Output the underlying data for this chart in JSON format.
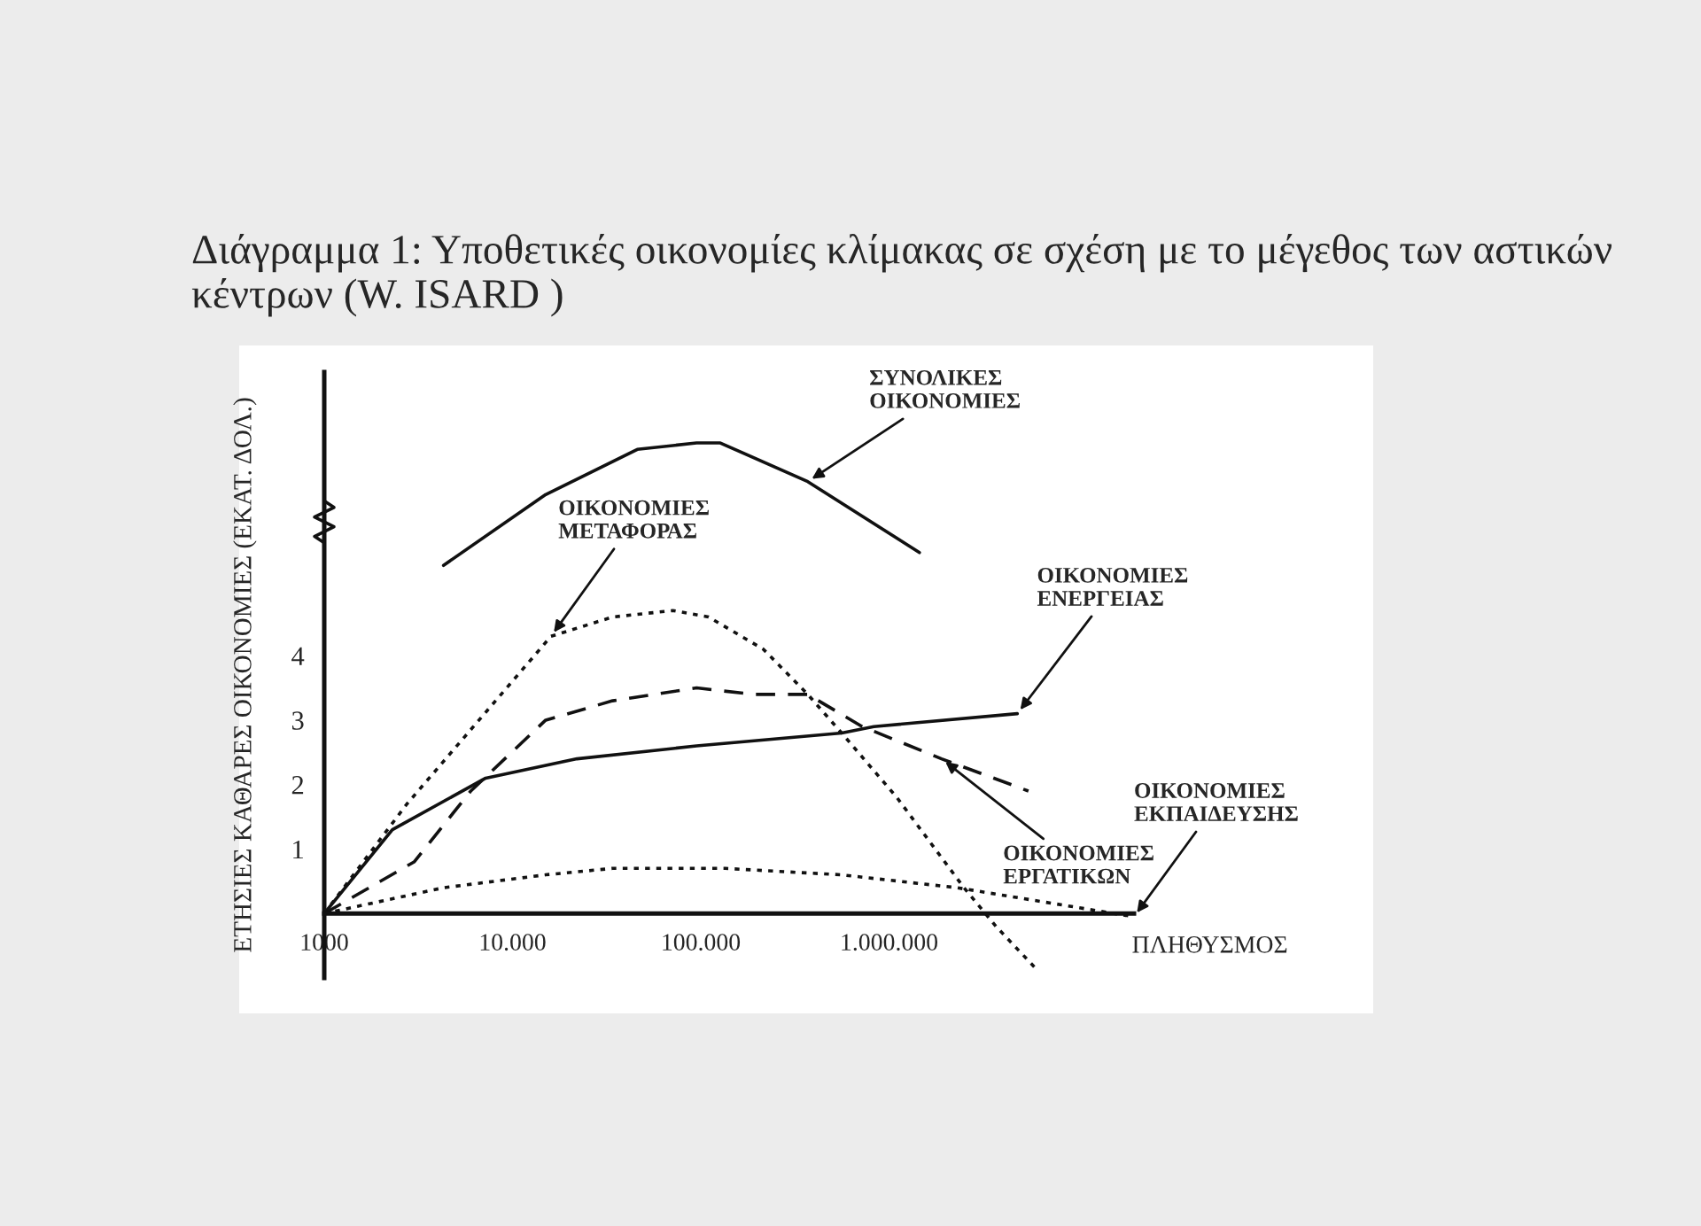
{
  "chart_data": {
    "type": "line",
    "title": "Διάγραμμα 1: Υποθετικές οικονομίες κλίμακας σε σχέση με το μέγεθος των αστικών κέντρων (W. ISARD )",
    "xlabel": "ΠΛΗΘΥΣΜΟΣ",
    "ylabel": "ΕΤΗΣΙΕΣ ΚΑΘΑΡΕΣ ΟΙΚΟΝΟΜΙΕΣ (ΕΚΑΤ. ΔΟΛ.)",
    "log": "x",
    "xlim": [
      1000,
      20000000
    ],
    "ylim": [
      -1,
      8.4
    ],
    "xticks": [
      {
        "value": 1000,
        "label": "1000"
      },
      {
        "value": 10000,
        "label": "10.000"
      },
      {
        "value": 100000,
        "label": "100.000"
      },
      {
        "value": 1000000,
        "label": "1.000.000"
      }
    ],
    "yticks": [
      1,
      2,
      3,
      4
    ],
    "grid": false,
    "legend": false,
    "marker": "none",
    "series": [
      {
        "name": "ΣΥΝΟΛΙΚΕΣ ΟΙΚΟΝΟΜΙΕΣ",
        "color": "#111111",
        "line_style": "solid",
        "x": [
          4300,
          15000,
          46000,
          95000,
          127000,
          370000,
          1450000
        ],
        "values": [
          5.4,
          6.5,
          7.2,
          7.3,
          7.3,
          6.7,
          5.6
        ]
      },
      {
        "name": "ΟΙΚΟΝΟΜΙΕΣ ΜΕΤΑΦΟΡΑΣ",
        "color": "#111111",
        "line_style": "dotted",
        "x": [
          1000,
          2750,
          8700,
          16000,
          34000,
          71000,
          110000,
          215000,
          370000,
          560000,
          1100000,
          2500000,
          3700000,
          6000000
        ],
        "values": [
          0,
          1.7,
          3.4,
          4.3,
          4.6,
          4.7,
          4.6,
          4.1,
          3.4,
          2.8,
          1.8,
          0.4,
          -0.2,
          -0.85
        ]
      },
      {
        "name": "ΟΙΚΟΝΟΜΙΕΣ ΕΝΕΡΓΕΙΑΣ",
        "color": "#111111",
        "line_style": "solid",
        "x": [
          1000,
          2300,
          7200,
          22000,
          95000,
          560000,
          830000,
          4800000
        ],
        "values": [
          0,
          1.3,
          2.1,
          2.4,
          2.6,
          2.8,
          2.9,
          3.1
        ]
      },
      {
        "name": "ΟΙΚΟΝΟΜΙΕΣ ΕΡΓΑΤΙΚΩΝ",
        "color": "#111111",
        "line_style": "dashed",
        "x": [
          1000,
          3000,
          6000,
          15000,
          34000,
          95000,
          190000,
          370000,
          720000,
          1900000,
          5500000
        ],
        "values": [
          0,
          0.8,
          1.9,
          3.0,
          3.3,
          3.5,
          3.4,
          3.4,
          2.9,
          2.4,
          1.9
        ]
      },
      {
        "name": "ΟΙΚΟΝΟΜΙΕΣ ΕΚΠΑΙΔΕΥΣΗΣ",
        "color": "#111111",
        "line_style": "dotted",
        "x": [
          1000,
          4300,
          15000,
          34000,
          135000,
          560000,
          2300000,
          20000000
        ],
        "values": [
          0,
          0.4,
          0.6,
          0.7,
          0.7,
          0.6,
          0.4,
          -0.05
        ]
      }
    ]
  }
}
